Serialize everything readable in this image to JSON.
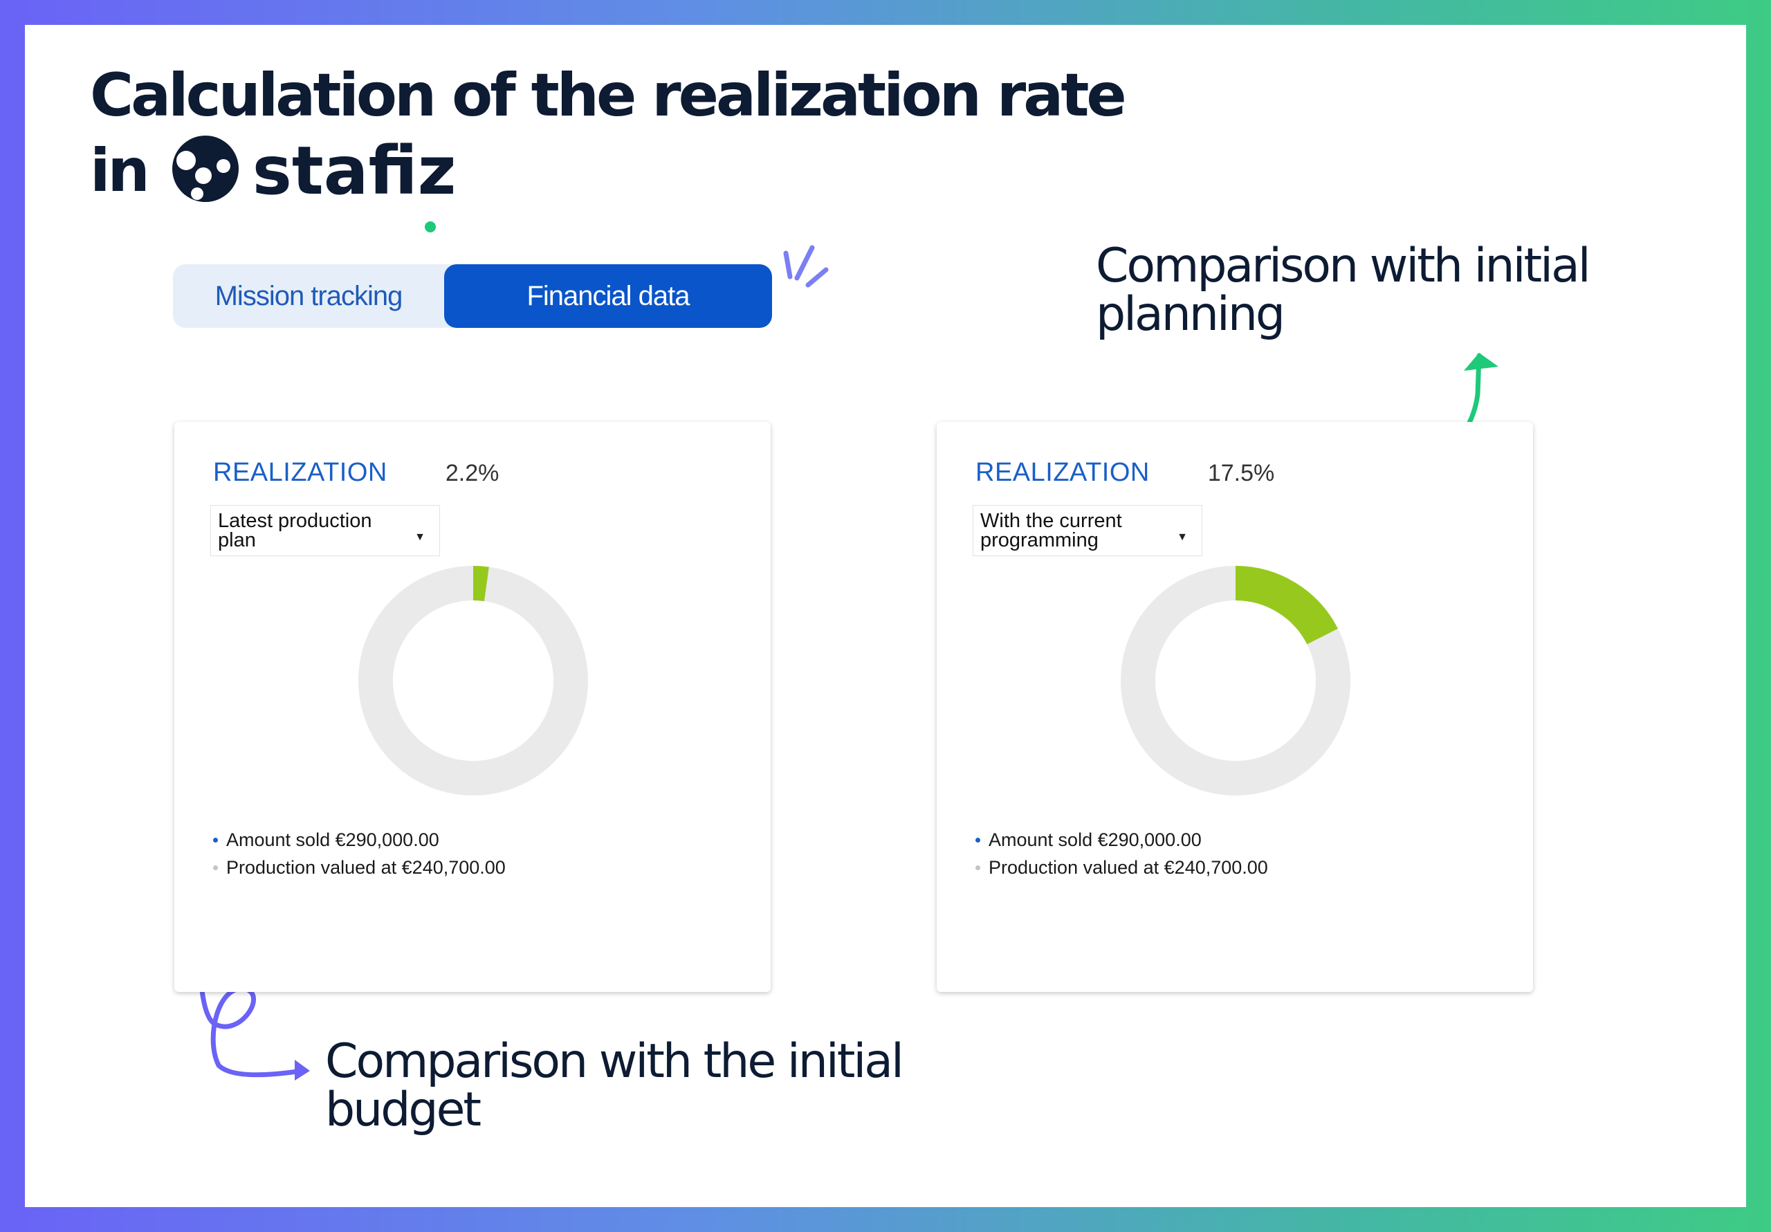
{
  "headline": {
    "line1": "Calculation of the realization rate",
    "line2_prefix": "in",
    "logo_text": "stafiz"
  },
  "tabs": [
    {
      "label": "Mission tracking",
      "active": false
    },
    {
      "label": "Financial data",
      "active": true
    }
  ],
  "annotations": {
    "top_right": "Comparison with initial planning",
    "bottom_left": "Comparison with the initial budget"
  },
  "colors": {
    "accent_blue": "#0a55c9",
    "donut_fill": "#97c81d",
    "donut_track": "#eaeaea",
    "arrow_green": "#1ec97a",
    "arrow_purple": "#6a63f6"
  },
  "cards": [
    {
      "label": "REALIZATION",
      "value_text": "2.2%",
      "rate": 2.2,
      "dropdown": "Latest production plan",
      "legend": [
        {
          "text": "Amount sold €290,000.00",
          "color": "#1a5fc8"
        },
        {
          "text": "Production valued at €240,700.00",
          "color": "#c4c4c4"
        }
      ]
    },
    {
      "label": "REALIZATION",
      "value_text": "17.5%",
      "rate": 17.5,
      "dropdown": "With the current programming",
      "legend": [
        {
          "text": "Amount sold €290,000.00",
          "color": "#1a5fc8"
        },
        {
          "text": "Production valued at €240,700.00",
          "color": "#c4c4c4"
        }
      ]
    }
  ]
}
